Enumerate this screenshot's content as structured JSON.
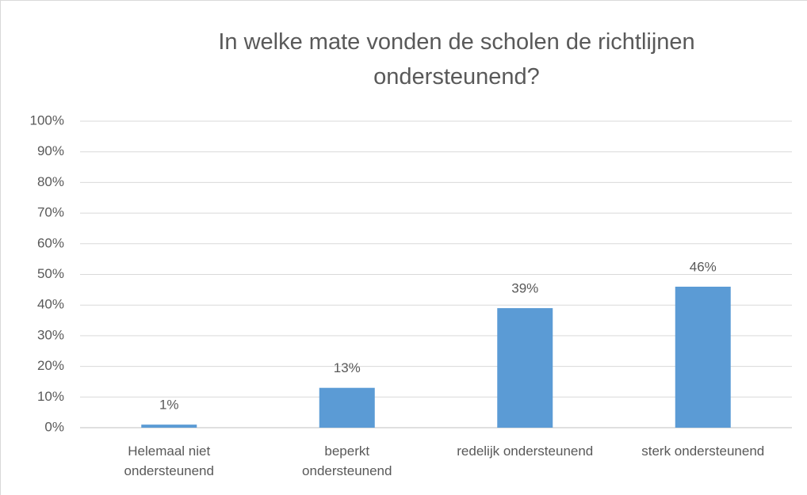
{
  "chart_data": {
    "type": "bar",
    "title": "In welke mate vonden de scholen de richtlijnen ondersteunend?",
    "categories": [
      "Helemaal niet ondersteunend",
      "beperkt ondersteunend",
      "redelijk ondersteunend",
      "sterk ondersteunend"
    ],
    "values": [
      1,
      13,
      39,
      46
    ],
    "value_labels": [
      "1%",
      "13%",
      "39%",
      "46%"
    ],
    "color": "#5b9bd5",
    "ylim": [
      0,
      100
    ],
    "yticks": [
      {
        "value": 0,
        "label": "0%"
      },
      {
        "value": 10,
        "label": "10%"
      },
      {
        "value": 20,
        "label": "20%"
      },
      {
        "value": 30,
        "label": "30%"
      },
      {
        "value": 40,
        "label": "40%"
      },
      {
        "value": 50,
        "label": "50%"
      },
      {
        "value": 60,
        "label": "60%"
      },
      {
        "value": 70,
        "label": "70%"
      },
      {
        "value": 80,
        "label": "80%"
      },
      {
        "value": 90,
        "label": "90%"
      },
      {
        "value": 100,
        "label": "100%"
      }
    ],
    "grid": true
  }
}
